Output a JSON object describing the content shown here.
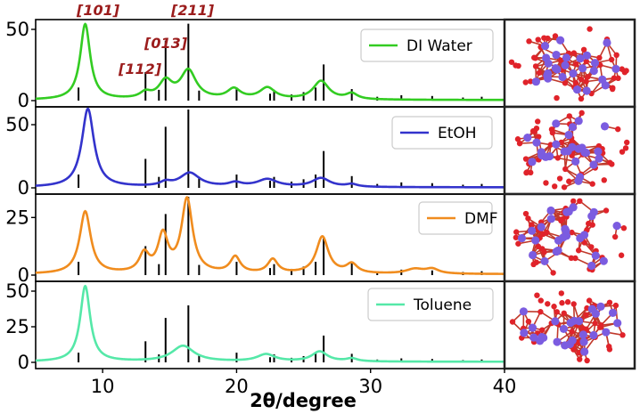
{
  "colors": {
    "reference": "#000000",
    "miller": "#9b1c1c",
    "atom_metal": "#7b5ce0",
    "atom_oxygen": "#e0232a",
    "bond": "#c0392b"
  },
  "chart_data": {
    "type": "line",
    "xlabel": "2θ/degree",
    "xlim": [
      5,
      40
    ],
    "xticks": [
      10,
      20,
      30,
      40
    ],
    "reference_peaks": [
      {
        "x": 8.2,
        "rel": 0.17
      },
      {
        "x": 13.2,
        "rel": 0.37
      },
      {
        "x": 14.2,
        "rel": 0.14
      },
      {
        "x": 14.7,
        "rel": 0.78
      },
      {
        "x": 16.4,
        "rel": 1.0
      },
      {
        "x": 17.2,
        "rel": 0.13
      },
      {
        "x": 20.0,
        "rel": 0.17
      },
      {
        "x": 22.5,
        "rel": 0.09
      },
      {
        "x": 22.8,
        "rel": 0.14
      },
      {
        "x": 24.1,
        "rel": 0.08
      },
      {
        "x": 25.0,
        "rel": 0.11
      },
      {
        "x": 25.9,
        "rel": 0.17
      },
      {
        "x": 26.5,
        "rel": 0.47
      },
      {
        "x": 28.6,
        "rel": 0.15
      },
      {
        "x": 30.5,
        "rel": 0.05
      },
      {
        "x": 32.3,
        "rel": 0.07
      },
      {
        "x": 34.6,
        "rel": 0.06
      },
      {
        "x": 36.9,
        "rel": 0.04
      },
      {
        "x": 38.3,
        "rel": 0.05
      }
    ],
    "miller_indices": [
      {
        "label": "[101]",
        "x": 8.7
      },
      {
        "label": "[211]",
        "x": 16.4
      },
      {
        "label": "[013]",
        "x": 14.7
      },
      {
        "label": "[112]",
        "x": 13.2
      }
    ],
    "panels": [
      {
        "name": "DI Water",
        "color": "#33cc22",
        "ylim": [
          0,
          55
        ],
        "yticks": [
          0,
          50
        ],
        "ref_scale": 54,
        "peaks": [
          [
            8.7,
            53,
            0.45
          ],
          [
            13.2,
            4,
            0.5
          ],
          [
            14.7,
            12,
            0.6
          ],
          [
            16.4,
            20,
            0.7
          ],
          [
            19.8,
            7,
            0.6
          ],
          [
            22.3,
            8,
            0.7
          ],
          [
            26.3,
            13,
            0.7
          ],
          [
            28.6,
            4,
            0.5
          ]
        ]
      },
      {
        "name": "EtOH",
        "color": "#3333cc",
        "ylim": [
          0,
          62
        ],
        "yticks": [
          0,
          50
        ],
        "ref_scale": 62,
        "peaks": [
          [
            8.9,
            62,
            0.55
          ],
          [
            14.7,
            3,
            0.5
          ],
          [
            16.5,
            11,
            0.9
          ],
          [
            19.9,
            3,
            0.6
          ],
          [
            22.3,
            6,
            0.9
          ],
          [
            26.3,
            7,
            0.8
          ],
          [
            28.6,
            2,
            0.5
          ]
        ]
      },
      {
        "name": "DMF",
        "color": "#f08c1e",
        "ylim": [
          0,
          34
        ],
        "yticks": [
          0,
          25
        ],
        "ref_scale": 34,
        "peaks": [
          [
            8.7,
            27,
            0.5
          ],
          [
            13.1,
            8,
            0.45
          ],
          [
            14.5,
            16,
            0.45
          ],
          [
            16.3,
            32,
            0.5
          ],
          [
            19.9,
            7,
            0.45
          ],
          [
            22.7,
            6,
            0.45
          ],
          [
            26.4,
            16,
            0.55
          ],
          [
            28.6,
            4,
            0.5
          ],
          [
            33.3,
            2,
            0.8
          ],
          [
            34.6,
            2,
            0.6
          ]
        ]
      },
      {
        "name": "Toluene",
        "color": "#55e8a8",
        "ylim": [
          0,
          55
        ],
        "yticks": [
          0,
          25,
          50
        ],
        "ref_scale": 40,
        "peaks": [
          [
            8.7,
            53,
            0.45
          ],
          [
            16.0,
            11,
            1.0
          ],
          [
            22.2,
            5,
            0.8
          ],
          [
            26.2,
            7,
            0.7
          ],
          [
            28.6,
            2,
            0.5
          ]
        ]
      }
    ]
  }
}
